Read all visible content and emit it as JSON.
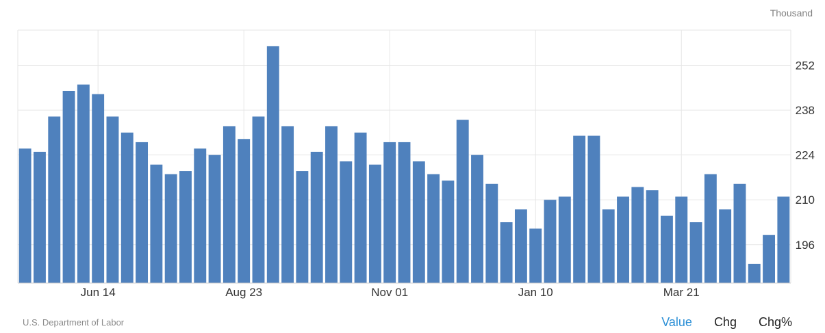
{
  "header": {
    "unit_label": "Thousand"
  },
  "footer": {
    "source": "U.S. Department of Labor",
    "toggles": [
      {
        "label": "Value",
        "active": true
      },
      {
        "label": "Chg",
        "active": false
      },
      {
        "label": "Chg%",
        "active": false
      }
    ]
  },
  "colors": {
    "bar": "#4f81bd",
    "grid": "#e6e6e6",
    "axis_text": "#333333",
    "active_toggle": "#2b8fd6"
  },
  "chart_data": {
    "type": "bar",
    "ylabel": "Thousand",
    "ylim": [
      184,
      263
    ],
    "yticks": [
      196,
      210,
      224,
      238,
      252
    ],
    "xtick_labels": [
      {
        "label": "Jun 14",
        "index": 5
      },
      {
        "label": "Aug 23",
        "index": 15
      },
      {
        "label": "Nov 01",
        "index": 25
      },
      {
        "label": "Jan 10",
        "index": 35
      },
      {
        "label": "Mar 21",
        "index": 45
      }
    ],
    "grid": true,
    "values": [
      226,
      225,
      236,
      244,
      246,
      243,
      236,
      231,
      228,
      221,
      218,
      219,
      226,
      224,
      233,
      229,
      236,
      258,
      233,
      219,
      225,
      233,
      222,
      231,
      221,
      228,
      228,
      222,
      218,
      216,
      235,
      224,
      215,
      203,
      207,
      201,
      210,
      211,
      230,
      230,
      207,
      211,
      214,
      213,
      205,
      211,
      203,
      218,
      207,
      215,
      190,
      199,
      211
    ]
  }
}
